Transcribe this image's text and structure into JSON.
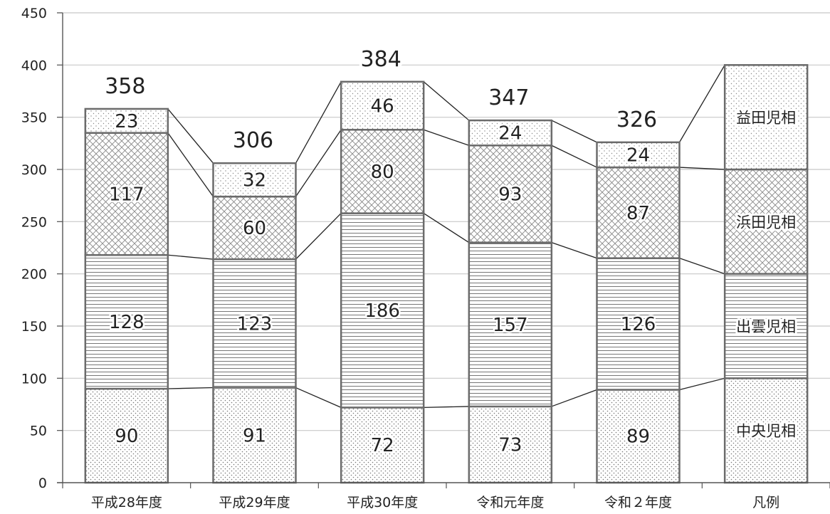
{
  "chart_data": {
    "type": "bar",
    "stacked": true,
    "categories": [
      "平成28年度",
      "平成29年度",
      "平成30年度",
      "令和元年度",
      "令和２年度"
    ],
    "series": [
      {
        "name": "中央児相",
        "values": [
          90,
          91,
          72,
          73,
          89
        ],
        "pattern": "dots-dense"
      },
      {
        "name": "出雲児相",
        "values": [
          128,
          123,
          186,
          157,
          126
        ],
        "pattern": "horizontal-lines"
      },
      {
        "name": "浜田児相",
        "values": [
          117,
          60,
          80,
          93,
          87
        ],
        "pattern": "cross-hatch"
      },
      {
        "name": "益田児相",
        "values": [
          23,
          32,
          46,
          24,
          24
        ],
        "pattern": "dots-sparse"
      }
    ],
    "totals": [
      358,
      306,
      384,
      347,
      326
    ],
    "legend_category": "凡例",
    "ylim": [
      0,
      450
    ],
    "yticks": [
      0,
      50,
      100,
      150,
      200,
      250,
      300,
      350,
      400,
      450
    ],
    "grid": true,
    "series_lines": true,
    "legend_placement": "last-column"
  }
}
